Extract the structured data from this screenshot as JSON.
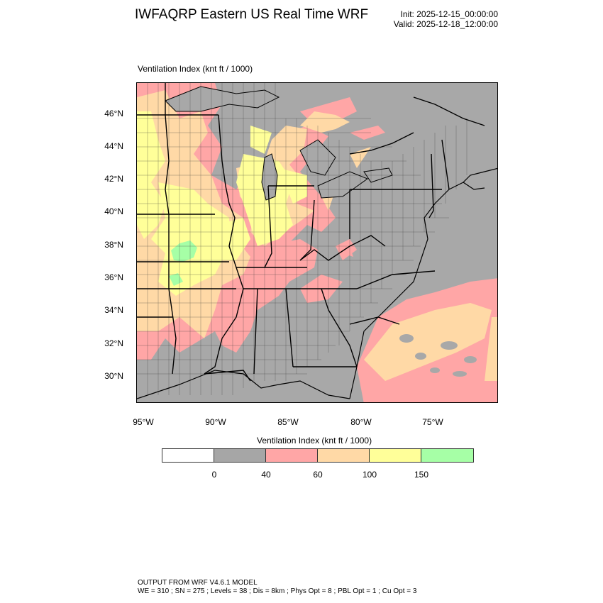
{
  "header": {
    "title": "IWFAQRP Eastern US Real Time WRF",
    "init": "Init: 2025-12-15_00:00:00",
    "valid": "Valid: 2025-12-18_12:00:00"
  },
  "map": {
    "field_label": "Ventilation Index   (knt ft / 1000)",
    "lat_labels": [
      "46°N",
      "44°N",
      "42°N",
      "40°N",
      "38°N",
      "36°N",
      "34°N",
      "32°N",
      "30°N"
    ],
    "lon_labels": [
      "95°W",
      "90°W",
      "85°W",
      "80°W",
      "75°W"
    ]
  },
  "colorbar": {
    "title": "Ventilation Index  (knt ft / 1000)",
    "colors": [
      "#ffffff",
      "#a6a6a6",
      "#ffa6a6",
      "#ffd9a6",
      "#ffff99",
      "#a6ffa6"
    ],
    "ticks": [
      "0",
      "40",
      "60",
      "100",
      "150"
    ]
  },
  "footer": {
    "line1": "OUTPUT FROM WRF V4.6.1 MODEL",
    "line2": "WE = 310 ; SN = 275 ; Levels = 38 ; Dis = 8km ; Phys Opt = 8 ; PBL Opt = 1 ; Cu Opt = 3"
  }
}
